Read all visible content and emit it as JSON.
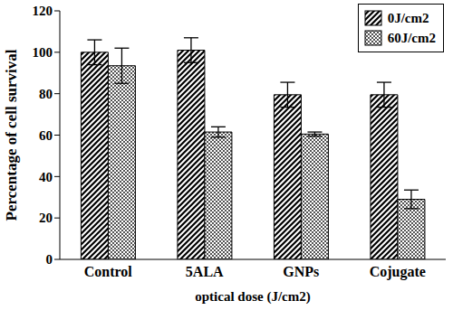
{
  "chart_data": {
    "type": "bar",
    "categories": [
      "Control",
      "5ALA",
      "GNPs",
      "Cojugate"
    ],
    "series": [
      {
        "name": "0J/cm2",
        "color": "#000000",
        "values": [
          100,
          101,
          79.5,
          79.5
        ],
        "errors": [
          6,
          6,
          6,
          6
        ]
      },
      {
        "name": "60J/cm2",
        "color": "#000000",
        "values": [
          93.5,
          61.5,
          60.5,
          29
        ],
        "errors": [
          8.5,
          2.5,
          1,
          4.5
        ]
      }
    ],
    "x_label": "optical dose (J/cm2)",
    "y_label": "Percentage of cell survival",
    "ylim": [
      0,
      120
    ],
    "yticks": [
      0,
      20,
      40,
      60,
      80,
      100,
      120
    ],
    "grid": false,
    "legend": "upper right"
  }
}
